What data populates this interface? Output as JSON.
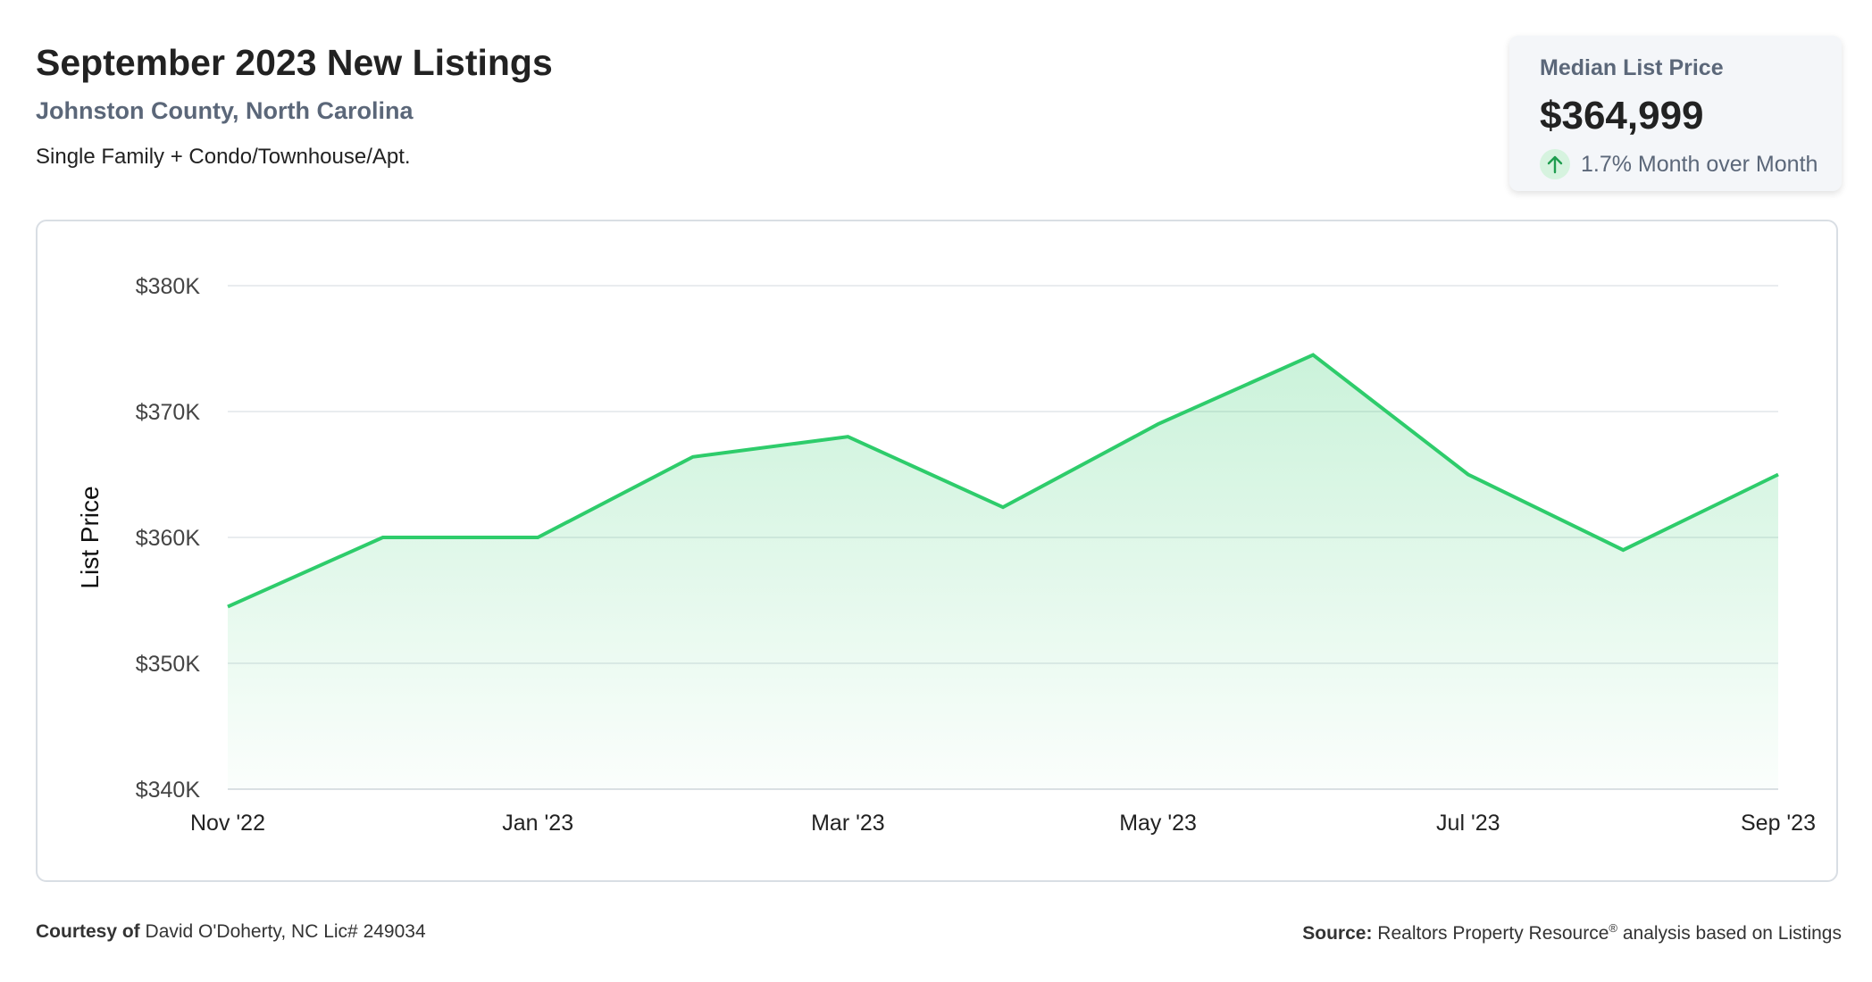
{
  "header": {
    "title": "September 2023 New Listings",
    "subtitle": "Johnston County, North Carolina",
    "description": "Single Family + Condo/Townhouse/Apt."
  },
  "stat": {
    "label": "Median List Price",
    "value": "$364,999",
    "change": "1.7% Month over Month",
    "change_icon": "arrow-up-icon",
    "trend_color": "#2ecc6b"
  },
  "footer": {
    "courtesy_label": "Courtesy of",
    "courtesy_text": "David O'Doherty, NC Lic# 249034",
    "source_label": "Source:",
    "source_text_1": "Realtors Property Resource",
    "source_sup": "®",
    "source_text_2": " analysis based on Listings"
  },
  "chart_data": {
    "type": "area",
    "ylabel": "List Price",
    "xlabel": "",
    "x": [
      "Nov '22",
      "Dec '22",
      "Jan '23",
      "Feb '23",
      "Mar '23",
      "Apr '23",
      "May '23",
      "Jun '23",
      "Jul '23",
      "Aug '23",
      "Sep '23"
    ],
    "x_tick_labels": [
      "Nov '22",
      "Jan '23",
      "Mar '23",
      "May '23",
      "Jul '23",
      "Sep '23"
    ],
    "series": [
      {
        "values": [
          354500,
          360000,
          360000,
          366400,
          368000,
          362400,
          369000,
          374500,
          365000,
          359000,
          364999
        ]
      }
    ],
    "ylim": [
      340000,
      380000
    ],
    "y_ticks": [
      340000,
      350000,
      360000,
      370000,
      380000
    ],
    "y_tick_labels": [
      "$340K",
      "$350K",
      "$360K",
      "$370K",
      "$380K"
    ],
    "grid": true,
    "line_color": "#2ecc6b"
  }
}
